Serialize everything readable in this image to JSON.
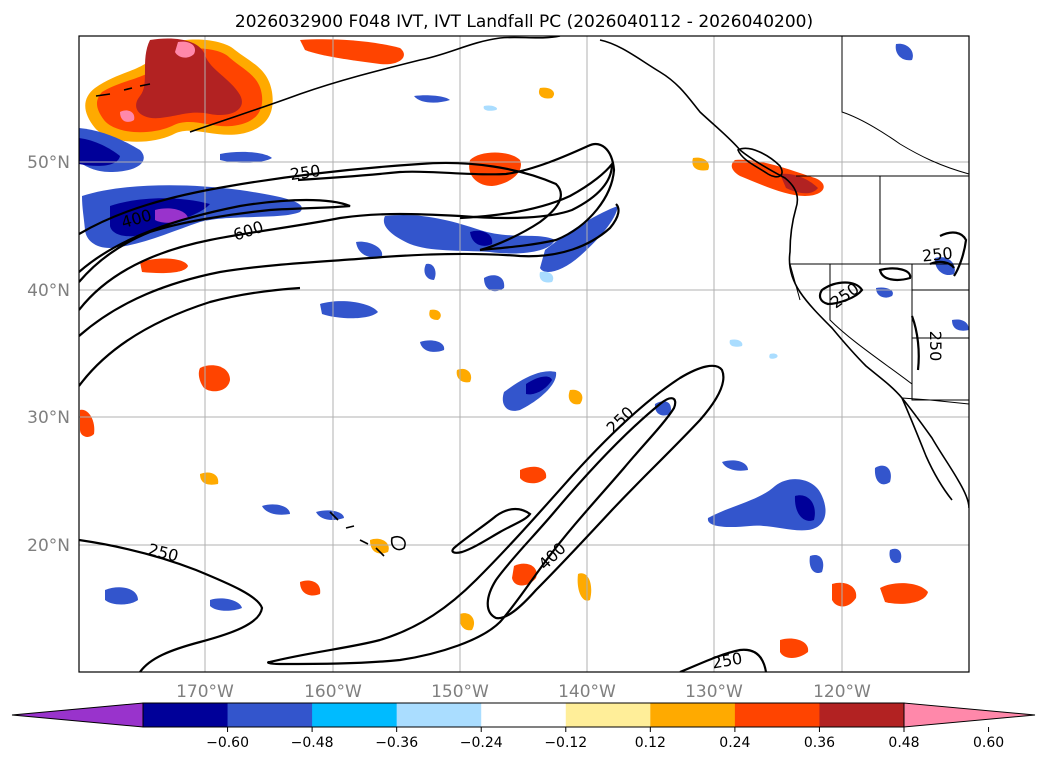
{
  "title": "2026032900 F048 IVT, IVT Landfall PC (2026040112 - 2026040200)",
  "lat_labels": [
    "50°N",
    "40°N",
    "30°N",
    "20°N"
  ],
  "lon_labels": [
    "170°W",
    "160°W",
    "150°W",
    "140°W",
    "130°W",
    "120°W"
  ],
  "contour_labels": [
    "250",
    "400",
    "600",
    "250",
    "400",
    "250",
    "250",
    "250",
    "250",
    "250"
  ],
  "colorbar": {
    "tick_labels": [
      "−0.60",
      "−0.48",
      "−0.36",
      "−0.24",
      "−0.12",
      "0.12",
      "0.24",
      "0.36",
      "0.48",
      "0.60"
    ],
    "colors": [
      "#9933cc",
      "#000099",
      "#3355cc",
      "#00bbff",
      "#aaddff",
      "#ffffff",
      "#ffee99",
      "#ffaa00",
      "#ff4400",
      "#b22222",
      "#ff88aa"
    ]
  },
  "colors": {
    "neg_strong": "#000099",
    "neg_mid": "#3355cc",
    "neg_light": "#00bbff",
    "neg_pale": "#aaddff",
    "neg_extreme": "#9933cc",
    "pos_pale": "#ffee99",
    "pos_light": "#ffaa00",
    "pos_mid": "#ff4400",
    "pos_strong": "#b22222",
    "pos_extreme": "#ff88aa"
  }
}
